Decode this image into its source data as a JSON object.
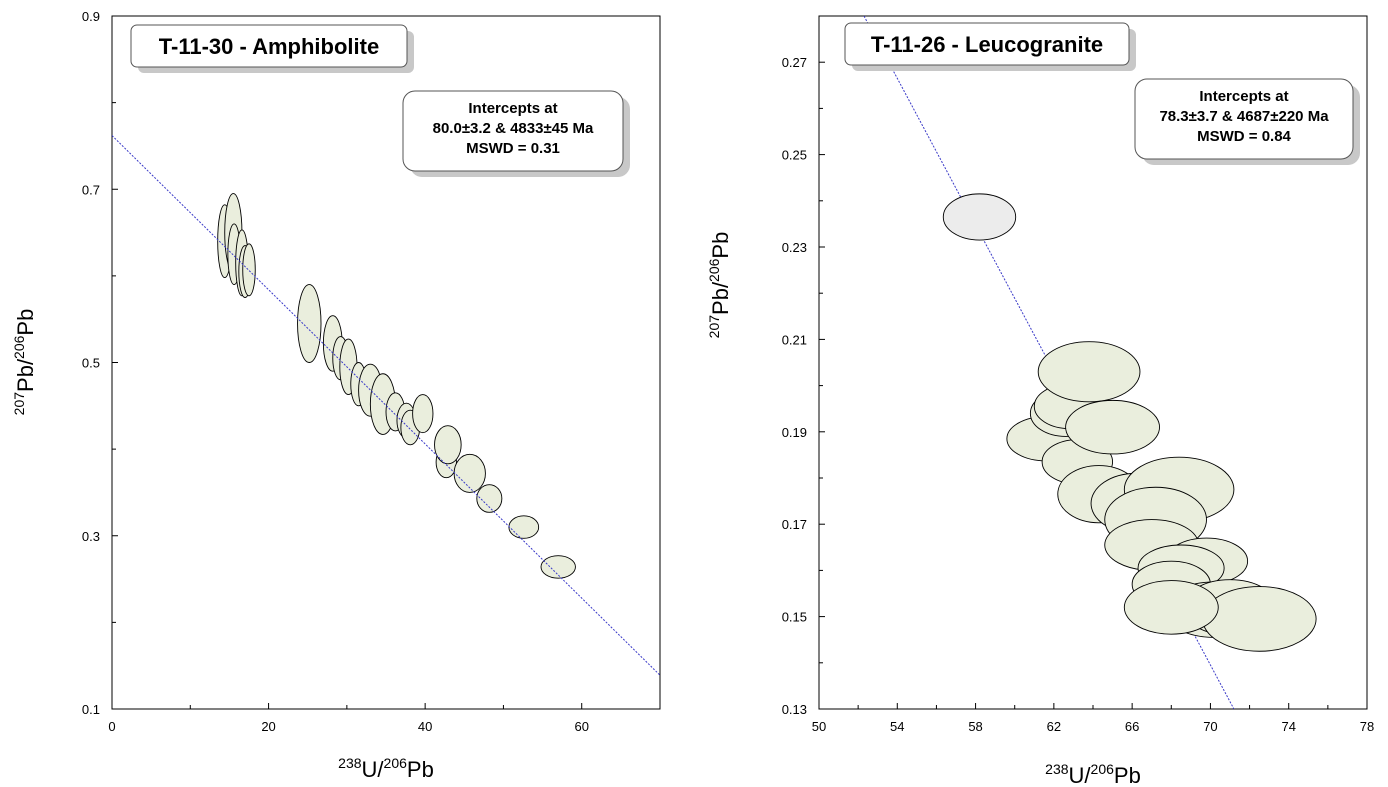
{
  "chart_data": [
    {
      "type": "scatter",
      "subtype": "concordia-error-ellipses",
      "sample_label": "T-11-30 - Amphibolite",
      "intercepts_box": [
        "Intercepts at",
        "80.0±3.2 & 4833±45 Ma",
        "MSWD = 0.31"
      ],
      "xlabel": {
        "sup1": "238",
        "main1": "U/",
        "sup2": "206",
        "main2": "Pb"
      },
      "ylabel": {
        "sup1": "207",
        "main1": "Pb/",
        "sup2": "206",
        "main2": "Pb"
      },
      "xlim": [
        0,
        70
      ],
      "ylim": [
        0.1,
        0.9
      ],
      "xticks": [
        0,
        20,
        40,
        60
      ],
      "yticks": [
        0.1,
        0.3,
        0.5,
        0.7,
        0.9
      ],
      "xtick_labels": [
        "0",
        "20",
        "40",
        "60"
      ],
      "ytick_labels": [
        "0.1",
        "0.3",
        "0.5",
        "0.7",
        "0.9"
      ],
      "x_minor_step": 10,
      "y_minor_step": 0.1,
      "regression_line": [
        [
          0,
          0.762
        ],
        [
          70,
          0.139
        ]
      ],
      "ellipse_color": "#eaeedd",
      "ellipses": [
        {
          "x": 14.4,
          "y": 0.64,
          "rx": 0.9,
          "ry": 0.042,
          "rot": 0
        },
        {
          "x": 15.5,
          "y": 0.65,
          "rx": 1.1,
          "ry": 0.045,
          "rot": 0
        },
        {
          "x": 15.6,
          "y": 0.625,
          "rx": 0.8,
          "ry": 0.035,
          "rot": 0
        },
        {
          "x": 16.6,
          "y": 0.615,
          "rx": 0.8,
          "ry": 0.038,
          "rot": 0
        },
        {
          "x": 17.0,
          "y": 0.605,
          "rx": 0.8,
          "ry": 0.03,
          "rot": 0
        },
        {
          "x": 17.5,
          "y": 0.607,
          "rx": 0.8,
          "ry": 0.03,
          "rot": 0
        },
        {
          "x": 25.2,
          "y": 0.545,
          "rx": 1.5,
          "ry": 0.045,
          "rot": 0
        },
        {
          "x": 28.2,
          "y": 0.522,
          "rx": 1.2,
          "ry": 0.032,
          "rot": 0
        },
        {
          "x": 29.2,
          "y": 0.505,
          "rx": 1.0,
          "ry": 0.025,
          "rot": 0
        },
        {
          "x": 30.2,
          "y": 0.495,
          "rx": 1.1,
          "ry": 0.032,
          "rot": 0
        },
        {
          "x": 31.5,
          "y": 0.475,
          "rx": 1.0,
          "ry": 0.025,
          "rot": 0
        },
        {
          "x": 33.0,
          "y": 0.468,
          "rx": 1.5,
          "ry": 0.03,
          "rot": 0
        },
        {
          "x": 34.6,
          "y": 0.452,
          "rx": 1.6,
          "ry": 0.035,
          "rot": 0
        },
        {
          "x": 36.2,
          "y": 0.443,
          "rx": 1.2,
          "ry": 0.022,
          "rot": 0
        },
        {
          "x": 37.6,
          "y": 0.433,
          "rx": 1.2,
          "ry": 0.02,
          "rot": 0
        },
        {
          "x": 38.1,
          "y": 0.425,
          "rx": 1.2,
          "ry": 0.02,
          "rot": 0
        },
        {
          "x": 39.7,
          "y": 0.441,
          "rx": 1.3,
          "ry": 0.022,
          "rot": 0
        },
        {
          "x": 42.7,
          "y": 0.385,
          "rx": 1.3,
          "ry": 0.018,
          "rot": 0
        },
        {
          "x": 42.9,
          "y": 0.405,
          "rx": 1.7,
          "ry": 0.022,
          "rot": 0
        },
        {
          "x": 45.7,
          "y": 0.372,
          "rx": 2.0,
          "ry": 0.022,
          "rot": 0
        },
        {
          "x": 48.2,
          "y": 0.343,
          "rx": 1.6,
          "ry": 0.016,
          "rot": 0
        },
        {
          "x": 52.6,
          "y": 0.31,
          "rx": 1.9,
          "ry": 0.013,
          "rot": 0
        },
        {
          "x": 57.0,
          "y": 0.264,
          "rx": 2.2,
          "ry": 0.013,
          "rot": 0
        }
      ]
    },
    {
      "type": "scatter",
      "subtype": "concordia-error-ellipses",
      "sample_label": "T-11-26 - Leucogranite",
      "intercepts_box": [
        "Intercepts at",
        "78.3±3.7 & 4687±220 Ma",
        "MSWD = 0.84"
      ],
      "xlabel": {
        "sup1": "238",
        "main1": "U/",
        "sup2": "206",
        "main2": "Pb"
      },
      "ylabel": {
        "sup1": "207",
        "main1": "Pb/",
        "sup2": "206",
        "main2": "Pb"
      },
      "xlim": [
        50,
        78
      ],
      "ylim": [
        0.13,
        0.28
      ],
      "xticks": [
        50,
        54,
        58,
        62,
        66,
        70,
        74,
        78
      ],
      "yticks": [
        0.13,
        0.15,
        0.17,
        0.19,
        0.21,
        0.23,
        0.25,
        0.27
      ],
      "xtick_labels": [
        "50",
        "54",
        "58",
        "62",
        "66",
        "70",
        "74",
        "78"
      ],
      "ytick_labels": [
        "0.13",
        "0.15",
        "0.17",
        "0.19",
        "0.21",
        "0.23",
        "0.25",
        "0.27"
      ],
      "x_minor_step": 2,
      "y_minor_step": 0.01,
      "regression_line": [
        [
          52.3,
          0.28
        ],
        [
          71.2,
          0.13
        ]
      ],
      "ellipse_color": "#eaeedd",
      "outlier_color": "#ececec",
      "ellipses": [
        {
          "x": 58.2,
          "y": 0.2365,
          "rx": 1.85,
          "ry": 0.005,
          "rot": 0,
          "outlier": true
        },
        {
          "x": 61.6,
          "y": 0.1885,
          "rx": 2.0,
          "ry": 0.0048,
          "rot": 0
        },
        {
          "x": 62.6,
          "y": 0.194,
          "rx": 1.8,
          "ry": 0.005,
          "rot": 0
        },
        {
          "x": 62.8,
          "y": 0.1955,
          "rx": 1.8,
          "ry": 0.0048,
          "rot": 0
        },
        {
          "x": 63.2,
          "y": 0.1835,
          "rx": 1.8,
          "ry": 0.0048,
          "rot": 0
        },
        {
          "x": 63.8,
          "y": 0.203,
          "rx": 2.6,
          "ry": 0.0065,
          "rot": 0
        },
        {
          "x": 65.0,
          "y": 0.191,
          "rx": 2.4,
          "ry": 0.0058,
          "rot": 0
        },
        {
          "x": 64.3,
          "y": 0.1765,
          "rx": 2.1,
          "ry": 0.0062,
          "rot": 0
        },
        {
          "x": 66.2,
          "y": 0.1745,
          "rx": 2.3,
          "ry": 0.0065,
          "rot": 0
        },
        {
          "x": 68.4,
          "y": 0.1775,
          "rx": 2.8,
          "ry": 0.007,
          "rot": 0
        },
        {
          "x": 67.2,
          "y": 0.171,
          "rx": 2.6,
          "ry": 0.007,
          "rot": 0
        },
        {
          "x": 67.0,
          "y": 0.1655,
          "rx": 2.4,
          "ry": 0.0055,
          "rot": 0
        },
        {
          "x": 69.8,
          "y": 0.162,
          "rx": 2.1,
          "ry": 0.005,
          "rot": 0
        },
        {
          "x": 68.5,
          "y": 0.1605,
          "rx": 2.2,
          "ry": 0.005,
          "rot": 0
        },
        {
          "x": 68.0,
          "y": 0.157,
          "rx": 2.0,
          "ry": 0.005,
          "rot": 0
        },
        {
          "x": 70.2,
          "y": 0.1515,
          "rx": 2.6,
          "ry": 0.006,
          "rot": 0
        },
        {
          "x": 71.0,
          "y": 0.152,
          "rx": 2.4,
          "ry": 0.006,
          "rot": 0
        },
        {
          "x": 72.5,
          "y": 0.1495,
          "rx": 2.9,
          "ry": 0.007,
          "rot": 0
        },
        {
          "x": 68.0,
          "y": 0.152,
          "rx": 2.4,
          "ry": 0.0058,
          "rot": 0
        }
      ]
    }
  ]
}
